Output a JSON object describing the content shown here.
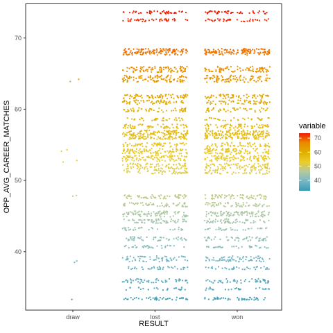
{
  "chart_data": {
    "type": "scatter",
    "xlabel": "RESULT",
    "ylabel": "OPP_AVG_CAREER_MATCHES",
    "categories": [
      "draw",
      "lost",
      "won"
    ],
    "ylim": [
      31.8,
      74.8
    ],
    "y_ticks": [
      "40",
      "50",
      "60",
      "70"
    ],
    "y_tick_values": [
      40,
      50,
      60,
      70
    ],
    "grid": false,
    "jitter": true,
    "color_variable": "OPP_AVG_CAREER_MATCHES",
    "legend": {
      "title": "variable",
      "placement": "right",
      "range": [
        32.5,
        73.5
      ],
      "ticks": [
        "40",
        "50",
        "60",
        "70"
      ],
      "tick_values": [
        40,
        50,
        60,
        70
      ],
      "colors": [
        "#3a9ab2",
        "#78b7c5",
        "#b4c9a0",
        "#ebcc2a",
        "#e1af00",
        "#eb8a00",
        "#f21a00"
      ]
    },
    "series": [
      {
        "category": "draw",
        "points": [
          {
            "jitter": -0.08,
            "y": 63.9
          },
          {
            "jitter": 0.18,
            "y": 64.2
          },
          {
            "jitter": -0.35,
            "y": 54.1
          },
          {
            "jitter": -0.18,
            "y": 54.3
          },
          {
            "jitter": -0.3,
            "y": 52.6
          },
          {
            "jitter": 0.12,
            "y": 52.8
          },
          {
            "jitter": 0.0,
            "y": 47.8
          },
          {
            "jitter": 0.11,
            "y": 47.9
          },
          {
            "jitter": 0.05,
            "y": 38.5
          },
          {
            "jitter": 0.12,
            "y": 38.7
          },
          {
            "jitter": -0.03,
            "y": 33.3
          }
        ]
      },
      {
        "category": "lost",
        "bands": [
          {
            "y": 73.6,
            "spread": 0.2,
            "n": 45
          },
          {
            "y": 72.5,
            "spread": 0.2,
            "n": 40
          },
          {
            "y": 68.2,
            "spread": 0.3,
            "n": 90
          },
          {
            "y": 67.8,
            "spread": 0.2,
            "n": 40
          },
          {
            "y": 65.6,
            "spread": 0.4,
            "n": 90
          },
          {
            "y": 64.3,
            "spread": 0.5,
            "n": 100
          },
          {
            "y": 61.8,
            "spread": 0.3,
            "n": 70
          },
          {
            "y": 61.0,
            "spread": 0.3,
            "n": 60
          },
          {
            "y": 59.9,
            "spread": 0.3,
            "n": 50
          },
          {
            "y": 58.6,
            "spread": 0.2,
            "n": 30
          },
          {
            "y": 57.6,
            "spread": 0.3,
            "n": 60
          },
          {
            "y": 56.8,
            "spread": 0.3,
            "n": 70
          },
          {
            "y": 56.2,
            "spread": 0.4,
            "n": 120
          },
          {
            "y": 55.0,
            "spread": 0.3,
            "n": 60
          },
          {
            "y": 54.1,
            "spread": 0.4,
            "n": 90
          },
          {
            "y": 53.1,
            "spread": 0.4,
            "n": 100
          },
          {
            "y": 52.0,
            "spread": 0.4,
            "n": 80
          },
          {
            "y": 51.2,
            "spread": 0.3,
            "n": 50
          },
          {
            "y": 47.7,
            "spread": 0.3,
            "n": 60
          },
          {
            "y": 46.6,
            "spread": 0.3,
            "n": 60
          },
          {
            "y": 45.3,
            "spread": 0.4,
            "n": 90
          },
          {
            "y": 44.3,
            "spread": 0.3,
            "n": 60
          },
          {
            "y": 43.2,
            "spread": 0.2,
            "n": 30
          },
          {
            "y": 41.8,
            "spread": 0.3,
            "n": 45
          },
          {
            "y": 40.7,
            "spread": 0.2,
            "n": 30
          },
          {
            "y": 39.0,
            "spread": 0.4,
            "n": 60
          },
          {
            "y": 37.7,
            "spread": 0.2,
            "n": 35
          },
          {
            "y": 35.9,
            "spread": 0.3,
            "n": 50
          },
          {
            "y": 34.8,
            "spread": 0.2,
            "n": 25
          },
          {
            "y": 33.4,
            "spread": 0.2,
            "n": 40
          }
        ]
      },
      {
        "category": "won",
        "bands": [
          {
            "y": 73.6,
            "spread": 0.2,
            "n": 40
          },
          {
            "y": 72.5,
            "spread": 0.2,
            "n": 40
          },
          {
            "y": 68.2,
            "spread": 0.3,
            "n": 90
          },
          {
            "y": 67.8,
            "spread": 0.2,
            "n": 40
          },
          {
            "y": 65.6,
            "spread": 0.4,
            "n": 80
          },
          {
            "y": 64.3,
            "spread": 0.5,
            "n": 90
          },
          {
            "y": 61.8,
            "spread": 0.3,
            "n": 60
          },
          {
            "y": 61.0,
            "spread": 0.3,
            "n": 55
          },
          {
            "y": 59.9,
            "spread": 0.3,
            "n": 45
          },
          {
            "y": 58.6,
            "spread": 0.2,
            "n": 30
          },
          {
            "y": 57.6,
            "spread": 0.3,
            "n": 60
          },
          {
            "y": 56.8,
            "spread": 0.3,
            "n": 70
          },
          {
            "y": 56.2,
            "spread": 0.4,
            "n": 120
          },
          {
            "y": 55.0,
            "spread": 0.3,
            "n": 60
          },
          {
            "y": 54.1,
            "spread": 0.4,
            "n": 90
          },
          {
            "y": 53.1,
            "spread": 0.4,
            "n": 100
          },
          {
            "y": 52.0,
            "spread": 0.4,
            "n": 80
          },
          {
            "y": 51.2,
            "spread": 0.3,
            "n": 50
          },
          {
            "y": 47.7,
            "spread": 0.3,
            "n": 60
          },
          {
            "y": 46.6,
            "spread": 0.3,
            "n": 60
          },
          {
            "y": 45.3,
            "spread": 0.4,
            "n": 90
          },
          {
            "y": 44.3,
            "spread": 0.3,
            "n": 55
          },
          {
            "y": 43.2,
            "spread": 0.2,
            "n": 30
          },
          {
            "y": 41.8,
            "spread": 0.3,
            "n": 45
          },
          {
            "y": 40.7,
            "spread": 0.2,
            "n": 30
          },
          {
            "y": 39.0,
            "spread": 0.4,
            "n": 70
          },
          {
            "y": 37.7,
            "spread": 0.2,
            "n": 35
          },
          {
            "y": 35.9,
            "spread": 0.3,
            "n": 50
          },
          {
            "y": 34.8,
            "spread": 0.2,
            "n": 25
          },
          {
            "y": 33.4,
            "spread": 0.2,
            "n": 45
          }
        ]
      }
    ]
  }
}
